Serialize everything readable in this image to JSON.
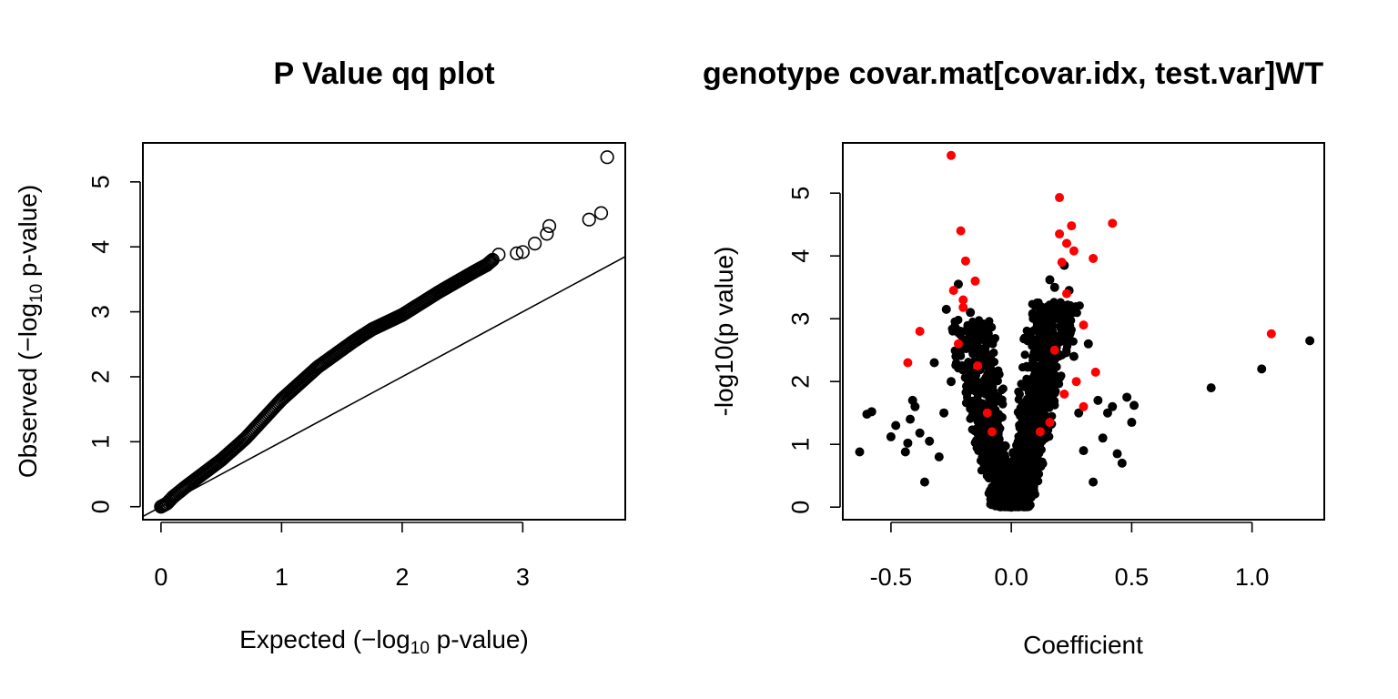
{
  "chart_data": [
    {
      "type": "scatter",
      "title": "P Value qq plot",
      "xlabel": {
        "pre": "Expected (−log",
        "sub": "10",
        "post": " p-value)"
      },
      "ylabel": {
        "pre": "Observed (−log",
        "sub": "10",
        "post": " p-value)"
      },
      "xlim": [
        -0.15,
        3.85
      ],
      "ylim": [
        -0.2,
        5.6
      ],
      "xticks": [
        0,
        1,
        2,
        3
      ],
      "yticks": [
        0,
        1,
        2,
        3,
        4,
        5
      ],
      "marker": "open-circle",
      "reference_line": {
        "slope": 1,
        "intercept": 0
      },
      "points": [
        [
          0,
          0
        ],
        [
          0.05,
          0.05
        ],
        [
          0.1,
          0.15
        ],
        [
          0.2,
          0.3
        ],
        [
          0.5,
          0.72
        ],
        [
          0.7,
          1.05
        ],
        [
          1.0,
          1.65
        ],
        [
          1.3,
          2.15
        ],
        [
          1.6,
          2.55
        ],
        [
          1.75,
          2.73
        ],
        [
          2.0,
          2.95
        ],
        [
          2.3,
          3.3
        ],
        [
          2.6,
          3.62
        ],
        [
          2.7,
          3.72
        ],
        [
          2.75,
          3.8
        ],
        [
          2.8,
          3.88
        ],
        [
          2.95,
          3.9
        ],
        [
          3.0,
          3.92
        ],
        [
          3.1,
          4.05
        ],
        [
          3.2,
          4.2
        ],
        [
          3.22,
          4.32
        ],
        [
          3.55,
          4.42
        ],
        [
          3.65,
          4.52
        ],
        [
          3.7,
          5.38
        ]
      ]
    },
    {
      "type": "scatter",
      "title": "genotype covar.mat[covar.idx, test.var]WT",
      "xlabel": "Coefficient",
      "ylabel": "-log10(p value)",
      "xlim": [
        -0.7,
        1.3
      ],
      "ylim": [
        -0.2,
        5.8
      ],
      "xticks": [
        -0.5,
        0.0,
        0.5,
        1.0
      ],
      "ytick_values": [
        0,
        1,
        2,
        3,
        4,
        5
      ],
      "series": [
        {
          "color": "#000000",
          "points": [
            [
              -0.63,
              0.88
            ],
            [
              -0.6,
              1.48
            ],
            [
              -0.58,
              1.52
            ],
            [
              -0.5,
              1.12
            ],
            [
              -0.48,
              1.3
            ],
            [
              -0.44,
              0.88
            ],
            [
              -0.43,
              1.02
            ],
            [
              -0.42,
              1.4
            ],
            [
              -0.41,
              1.7
            ],
            [
              -0.4,
              1.6
            ],
            [
              -0.38,
              1.18
            ],
            [
              -0.36,
              0.4
            ],
            [
              -0.34,
              1.05
            ],
            [
              -0.32,
              2.3
            ],
            [
              -0.3,
              0.8
            ],
            [
              -0.28,
              1.5
            ],
            [
              -0.27,
              3.15
            ],
            [
              -0.25,
              2.0
            ],
            [
              -0.22,
              3.55
            ],
            [
              -0.2,
              2.2
            ],
            [
              -0.17,
              3.1
            ],
            [
              -0.14,
              1.6
            ],
            [
              -0.12,
              0.8
            ],
            [
              -0.1,
              0.5
            ],
            [
              -0.08,
              0.3
            ],
            [
              -0.06,
              0.18
            ],
            [
              -0.04,
              0.1
            ],
            [
              -0.02,
              0.05
            ],
            [
              0,
              0
            ],
            [
              0.02,
              0.05
            ],
            [
              0.04,
              0.12
            ],
            [
              0.06,
              0.3
            ],
            [
              0.08,
              0.6
            ],
            [
              0.1,
              1.1
            ],
            [
              0.12,
              1.8
            ],
            [
              0.14,
              2.5
            ],
            [
              0.16,
              3.62
            ],
            [
              0.18,
              3.5
            ],
            [
              0.2,
              3.0
            ],
            [
              0.22,
              3.85
            ],
            [
              0.24,
              3.45
            ],
            [
              0.26,
              2.4
            ],
            [
              0.28,
              1.5
            ],
            [
              0.3,
              0.9
            ],
            [
              0.32,
              2.6
            ],
            [
              0.34,
              0.4
            ],
            [
              0.36,
              1.7
            ],
            [
              0.38,
              1.1
            ],
            [
              0.4,
              1.5
            ],
            [
              0.42,
              1.6
            ],
            [
              0.44,
              0.85
            ],
            [
              0.46,
              0.7
            ],
            [
              0.48,
              1.75
            ],
            [
              0.5,
              1.35
            ],
            [
              0.51,
              1.62
            ],
            [
              0.83,
              1.9
            ],
            [
              1.04,
              2.2
            ],
            [
              1.24,
              2.65
            ]
          ]
        },
        {
          "color": "#ff0000",
          "points": [
            [
              -0.25,
              5.6
            ],
            [
              -0.21,
              4.4
            ],
            [
              -0.19,
              3.92
            ],
            [
              -0.15,
              3.6
            ],
            [
              -0.24,
              3.45
            ],
            [
              -0.2,
              3.3
            ],
            [
              -0.2,
              3.18
            ],
            [
              -0.38,
              2.8
            ],
            [
              -0.43,
              2.3
            ],
            [
              -0.22,
              2.6
            ],
            [
              -0.14,
              2.25
            ],
            [
              -0.1,
              1.5
            ],
            [
              -0.08,
              1.2
            ],
            [
              0.2,
              4.93
            ],
            [
              0.2,
              4.35
            ],
            [
              0.25,
              4.48
            ],
            [
              0.23,
              4.2
            ],
            [
              0.26,
              4.08
            ],
            [
              0.21,
              3.9
            ],
            [
              0.23,
              3.4
            ],
            [
              0.42,
              4.52
            ],
            [
              0.34,
              3.96
            ],
            [
              0.3,
              2.9
            ],
            [
              0.18,
              2.5
            ],
            [
              0.27,
              2.0
            ],
            [
              0.22,
              1.8
            ],
            [
              0.3,
              1.6
            ],
            [
              0.16,
              1.35
            ],
            [
              0.35,
              2.15
            ],
            [
              0.12,
              1.2
            ],
            [
              1.08,
              2.76
            ]
          ]
        }
      ]
    }
  ]
}
